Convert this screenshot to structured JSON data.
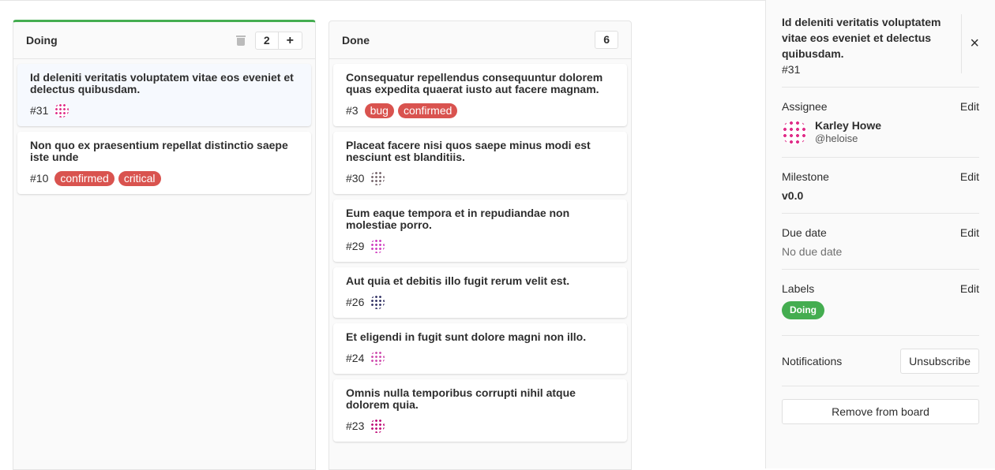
{
  "lists": [
    {
      "title": "Doing",
      "count": "2",
      "add_label": "+",
      "cards": [
        {
          "title": "Id deleniti veritatis voluptatem vitae eos eveniet et delectus quibusdam.",
          "num": "#31",
          "labels": [],
          "avatar": "#e0308a",
          "active": true
        },
        {
          "title": "Non quo ex praesentium repellat distinctio saepe iste unde",
          "num": "#10",
          "labels": [
            "confirmed",
            "critical"
          ],
          "avatar": null
        }
      ]
    },
    {
      "title": "Done",
      "count": "6",
      "cards": [
        {
          "title": "Consequatur repellendus consequuntur dolorem quas expedita quaerat iusto aut facere magnam.",
          "num": "#3",
          "labels": [
            "bug",
            "confirmed"
          ],
          "avatar": null
        },
        {
          "title": "Placeat facere nisi quos saepe minus modi est nesciunt est blanditiis.",
          "num": "#30",
          "labels": [],
          "avatar": "#7a6a70"
        },
        {
          "title": "Eum eaque tempora et in repudiandae non molestiae porro.",
          "num": "#29",
          "labels": [],
          "avatar": "#d040c0"
        },
        {
          "title": "Aut quia et debitis illo fugit rerum velit est.",
          "num": "#26",
          "labels": [],
          "avatar": "#3a3a6a"
        },
        {
          "title": "Et eligendi in fugit sunt dolore magni non illo.",
          "num": "#24",
          "labels": [],
          "avatar": "#d050b0"
        },
        {
          "title": "Omnis nulla temporibus corrupti nihil atque dolorem quia.",
          "num": "#23",
          "labels": [],
          "avatar": "#c0107a"
        }
      ]
    }
  ],
  "sidebar": {
    "title": "Id deleniti veritatis voluptatem vitae eos eveniet et delectus quibusdam.",
    "num": "#31",
    "close": "×",
    "assignee_label": "Assignee",
    "edit": "Edit",
    "assignee_name": "Karley Howe",
    "assignee_user": "@heloise",
    "milestone_label": "Milestone",
    "milestone": "v0.0",
    "due_label": "Due date",
    "due": "No due date",
    "labels_label": "Labels",
    "label": "Doing",
    "notif_label": "Notifications",
    "unsubscribe": "Unsubscribe",
    "remove": "Remove from board"
  },
  "colors": {
    "label_red": "#d9534f",
    "label_green": "#44ad50"
  }
}
